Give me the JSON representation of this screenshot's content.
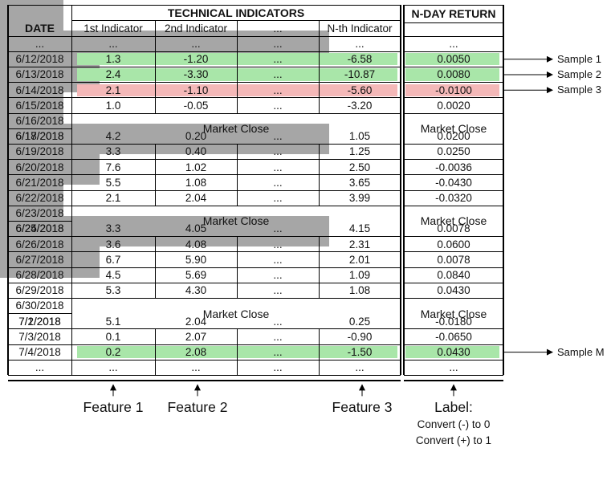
{
  "table": {
    "date_header": "DATE",
    "indicators_header": "TECHNICAL INDICATORS",
    "return_header": "N-DAY RETURN",
    "columns": [
      "1st Indicator",
      "2nd Indicator",
      "...",
      "N-th Indicator"
    ],
    "ellipsis": "...",
    "market_close_label": "Market Close",
    "rows": [
      {
        "type": "dots"
      },
      {
        "type": "data",
        "date": "6/12/2018",
        "v1": "1.3",
        "v2": "-1.20",
        "v3": "...",
        "vn": "-6.58",
        "ret": "0.0050",
        "highlight": "green",
        "sample": "Sample 1"
      },
      {
        "type": "data",
        "date": "6/13/2018",
        "v1": "2.4",
        "v2": "-3.30",
        "v3": "...",
        "vn": "-10.87",
        "ret": "0.0080",
        "highlight": "green",
        "sample": "Sample 2"
      },
      {
        "type": "data",
        "date": "6/14/2018",
        "v1": "2.1",
        "v2": "-1.10",
        "v3": "...",
        "vn": "-5.60",
        "ret": "-0.0100",
        "highlight": "red",
        "sample": "Sample 3"
      },
      {
        "type": "data",
        "date": "6/15/2018",
        "v1": "1.0",
        "v2": "-0.05",
        "v3": "...",
        "vn": "-3.20",
        "ret": "0.0020"
      },
      {
        "type": "close",
        "date1": "6/16/2018",
        "date2": "6/17/2018"
      },
      {
        "type": "data",
        "date": "6/18/2018",
        "v1": "4.2",
        "v2": "0.20",
        "v3": "...",
        "vn": "1.05",
        "ret": "0.0200"
      },
      {
        "type": "data",
        "date": "6/19/2018",
        "v1": "3.3",
        "v2": "0.40",
        "v3": "...",
        "vn": "1.25",
        "ret": "0.0250"
      },
      {
        "type": "data",
        "date": "6/20/2018",
        "v1": "7.6",
        "v2": "1.02",
        "v3": "...",
        "vn": "2.50",
        "ret": "-0.0036"
      },
      {
        "type": "data",
        "date": "6/21/2018",
        "v1": "5.5",
        "v2": "1.08",
        "v3": "...",
        "vn": "3.65",
        "ret": "-0.0430"
      },
      {
        "type": "data",
        "date": "6/22/2018",
        "v1": "2.1",
        "v2": "2.04",
        "v3": "...",
        "vn": "3.99",
        "ret": "-0.0320"
      },
      {
        "type": "close",
        "date1": "6/23/2018",
        "date2": "6/24/2018"
      },
      {
        "type": "data",
        "date": "6/25/2018",
        "v1": "3.3",
        "v2": "4.05",
        "v3": "...",
        "vn": "4.15",
        "ret": "0.0078"
      },
      {
        "type": "data",
        "date": "6/26/2018",
        "v1": "3.6",
        "v2": "4.08",
        "v3": "...",
        "vn": "2.31",
        "ret": "0.0600"
      },
      {
        "type": "data",
        "date": "6/27/2018",
        "v1": "6.7",
        "v2": "5.90",
        "v3": "...",
        "vn": "2.01",
        "ret": "0.0078"
      },
      {
        "type": "data",
        "date": "6/28/2018",
        "v1": "4.5",
        "v2": "5.69",
        "v3": "...",
        "vn": "1.09",
        "ret": "0.0840"
      },
      {
        "type": "data",
        "date": "6/29/2018",
        "v1": "5.3",
        "v2": "4.30",
        "v3": "...",
        "vn": "1.08",
        "ret": "0.0430"
      },
      {
        "type": "close",
        "date1": "6/30/2018",
        "date2": "7/1/2018"
      },
      {
        "type": "data",
        "date": "7/2/2018",
        "v1": "5.1",
        "v2": "2.04",
        "v3": "...",
        "vn": "0.25",
        "ret": "-0.0180"
      },
      {
        "type": "data",
        "date": "7/3/2018",
        "v1": "0.1",
        "v2": "2.07",
        "v3": "...",
        "vn": "-0.90",
        "ret": "-0.0650"
      },
      {
        "type": "data",
        "date": "7/4/2018",
        "v1": "0.2",
        "v2": "2.08",
        "v3": "...",
        "vn": "-1.50",
        "ret": "0.0430",
        "highlight": "green",
        "sample": "Sample M"
      },
      {
        "type": "dots"
      }
    ]
  },
  "features": [
    "Feature 1",
    "Feature 2",
    "Feature 3"
  ],
  "label": {
    "title": "Label:",
    "line1": "Convert (-) to 0",
    "line2": "Convert (+) to 1"
  },
  "colors": {
    "green_highlight": "#a9e6a9",
    "red_highlight": "#f4b8b8",
    "market_close": "#a6a6a6"
  }
}
